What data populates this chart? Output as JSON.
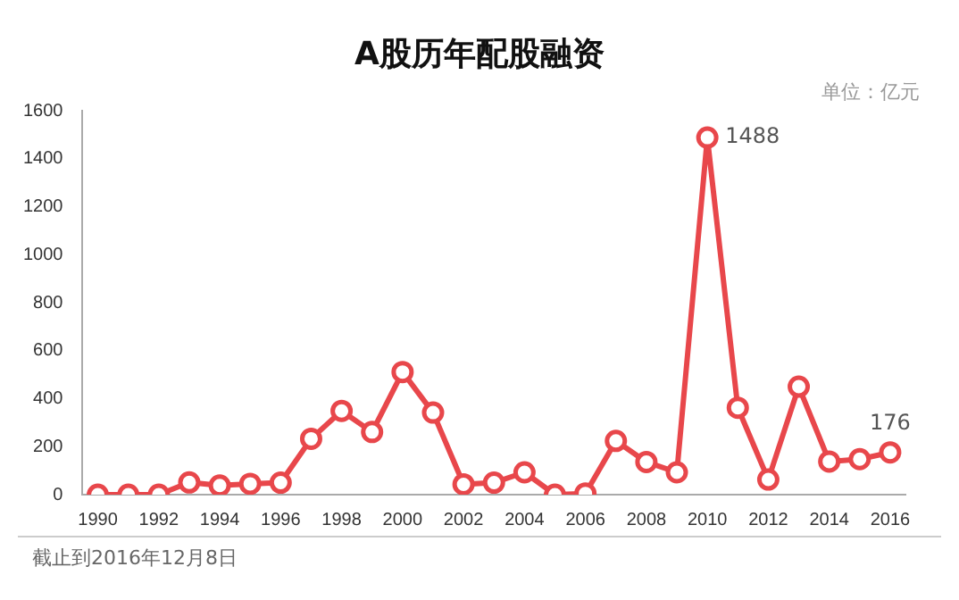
{
  "chart_data": {
    "type": "line",
    "title": "A股历年配股融资",
    "categories": [
      "1990",
      null,
      "1992",
      null,
      "1994",
      null,
      "1996",
      null,
      "1998",
      null,
      "2000",
      null,
      "2002",
      null,
      "2004",
      null,
      "2006",
      null,
      "2008",
      null,
      "2010",
      null,
      "2012",
      null,
      "2014",
      null,
      "2016"
    ],
    "series": [
      {
        "color": "#e8474b",
        "values": [
          0,
          0,
          0,
          51,
          38,
          45,
          50,
          233,
          349,
          261,
          511,
          342,
          43,
          50,
          93,
          0,
          5,
          224,
          136,
          93,
          1488,
          362,
          63,
          450,
          138,
          148,
          176
        ],
        "value_labels": [
          null,
          null,
          null,
          null,
          null,
          null,
          null,
          null,
          null,
          null,
          null,
          null,
          null,
          null,
          null,
          null,
          null,
          null,
          null,
          null,
          "1488",
          null,
          null,
          null,
          null,
          null,
          "176"
        ]
      }
    ],
    "ylim": [
      0,
      1600
    ],
    "yticks": [
      0,
      200,
      400,
      600,
      800,
      1000,
      1200,
      1400,
      1600
    ],
    "grid": false,
    "legend": false,
    "marker": "circle",
    "line_style": "solid",
    "annotations": [
      "单位：亿元",
      "截止到2016年12月8日"
    ]
  }
}
